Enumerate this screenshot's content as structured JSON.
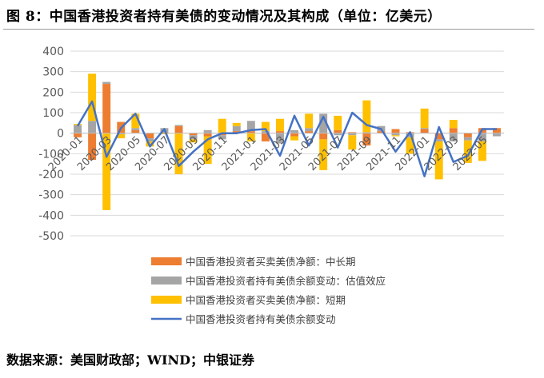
{
  "title": "图 8：中国香港投资者持有美债的变动情况及其构成（单位：亿美元）",
  "source": "数据来源：美国财政部；WIND；中银证券",
  "colors": {
    "long_term": "#ED7D31",
    "valuation": "#A5A5A5",
    "short_term": "#FFC000",
    "total_line": "#4472C4",
    "gridline": "#D9D9D9",
    "axis": "#BFBFBF"
  },
  "chart_data": {
    "type": "bar",
    "stacked": true,
    "grid": true,
    "legend_position": "bottom",
    "ylim": [
      -500,
      400
    ],
    "yticks": [
      -500,
      -400,
      -300,
      -200,
      -100,
      0,
      100,
      200,
      300,
      400
    ],
    "xtick_labels": [
      "2020-01",
      "2020-03",
      "2020-05",
      "2020-07",
      "2020-09",
      "2020-11",
      "2021-01",
      "2021-03",
      "2021-05",
      "2021-07",
      "2021-09",
      "2021-11",
      "2022-01",
      "2022-03",
      "2022-05"
    ],
    "categories": [
      "2020-01",
      "2020-02",
      "2020-03",
      "2020-04",
      "2020-05",
      "2020-06",
      "2020-07",
      "2020-08",
      "2020-09",
      "2020-10",
      "2020-11",
      "2020-12",
      "2021-01",
      "2021-02",
      "2021-03",
      "2021-04",
      "2021-05",
      "2021-06",
      "2021-07",
      "2021-08",
      "2021-09",
      "2021-10",
      "2021-11",
      "2021-12",
      "2022-01",
      "2022-02",
      "2022-03",
      "2022-04",
      "2022-05",
      "2022-06"
    ],
    "series": [
      {
        "name": "中国香港投资者买卖美债净额：中长期",
        "kind": "bar",
        "values": [
          -20,
          -130,
          240,
          55,
          15,
          -25,
          5,
          35,
          -10,
          -15,
          -10,
          10,
          10,
          -40,
          10,
          -15,
          10,
          -30,
          15,
          5,
          -60,
          10,
          20,
          5,
          20,
          -30,
          25,
          -20,
          25,
          25
        ]
      },
      {
        "name": "中国香港投资者持有美债余额变动：估值效应",
        "kind": "bar",
        "values": [
          40,
          60,
          10,
          -5,
          10,
          -15,
          20,
          5,
          -20,
          15,
          -20,
          25,
          50,
          10,
          -50,
          15,
          15,
          95,
          -10,
          -10,
          5,
          25,
          -10,
          -20,
          5,
          -10,
          -40,
          -15,
          -40,
          -15
        ]
      },
      {
        "name": "中国香港投资者买卖美债净额：短期",
        "kind": "bar",
        "values": [
          5,
          230,
          -375,
          -20,
          70,
          -25,
          -5,
          -200,
          -15,
          -135,
          70,
          15,
          -40,
          45,
          60,
          -20,
          70,
          -150,
          70,
          -70,
          155,
          0,
          -5,
          -80,
          95,
          -185,
          40,
          -110,
          -95,
          0
        ]
      },
      {
        "name": "中国香港投资者持有美债余额变动",
        "kind": "line",
        "values": [
          35,
          155,
          -115,
          25,
          95,
          -65,
          20,
          -160,
          -90,
          -30,
          0,
          0,
          15,
          20,
          -110,
          85,
          -60,
          80,
          -70,
          100,
          40,
          20,
          -90,
          5,
          -210,
          30,
          -140,
          -110,
          20,
          20
        ]
      }
    ]
  }
}
